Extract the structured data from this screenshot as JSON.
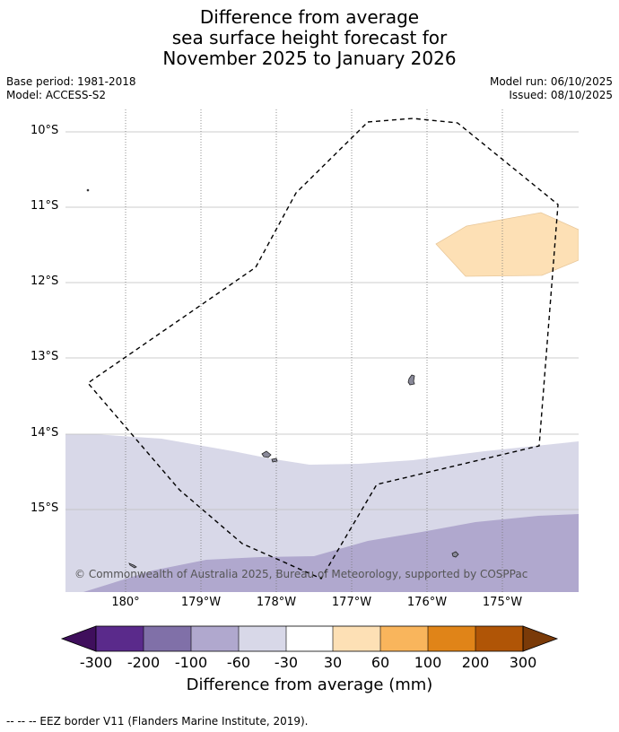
{
  "title": {
    "line1": "Difference from average",
    "line2": "sea surface height forecast for",
    "line3": "November 2025 to January 2026"
  },
  "meta": {
    "base_period": "Base period: 1981-2018",
    "model": "Model: ACCESS-S2",
    "model_run": "Model run: 06/10/2025",
    "issued": "Issued: 08/10/2025"
  },
  "axes": {
    "lat_labels": [
      "10°S",
      "11°S",
      "12°S",
      "13°S",
      "14°S",
      "15°S"
    ],
    "lon_labels": [
      "180°",
      "179°W",
      "178°W",
      "177°W",
      "176°W",
      "175°W"
    ]
  },
  "copyright": "© Commonwealth of Australia 2025, Bureau of Meteorology, supported by COSPPac",
  "colorbar": {
    "ticks": [
      "-300",
      "-200",
      "-100",
      "-60",
      "-30",
      "30",
      "60",
      "100",
      "200",
      "300"
    ],
    "colors": [
      "#3f0f5c",
      "#5a2a8b",
      "#8070a8",
      "#b0a8ce",
      "#d8d8e8",
      "#ffffff",
      "#fde0b5",
      "#f9b55c",
      "#e08418",
      "#b05506",
      "#7a3a08"
    ],
    "title": "Difference from average (mm)"
  },
  "footnote": "-- -- -- EEZ border V11 (Flanders Marine Institute, 2019)."
}
